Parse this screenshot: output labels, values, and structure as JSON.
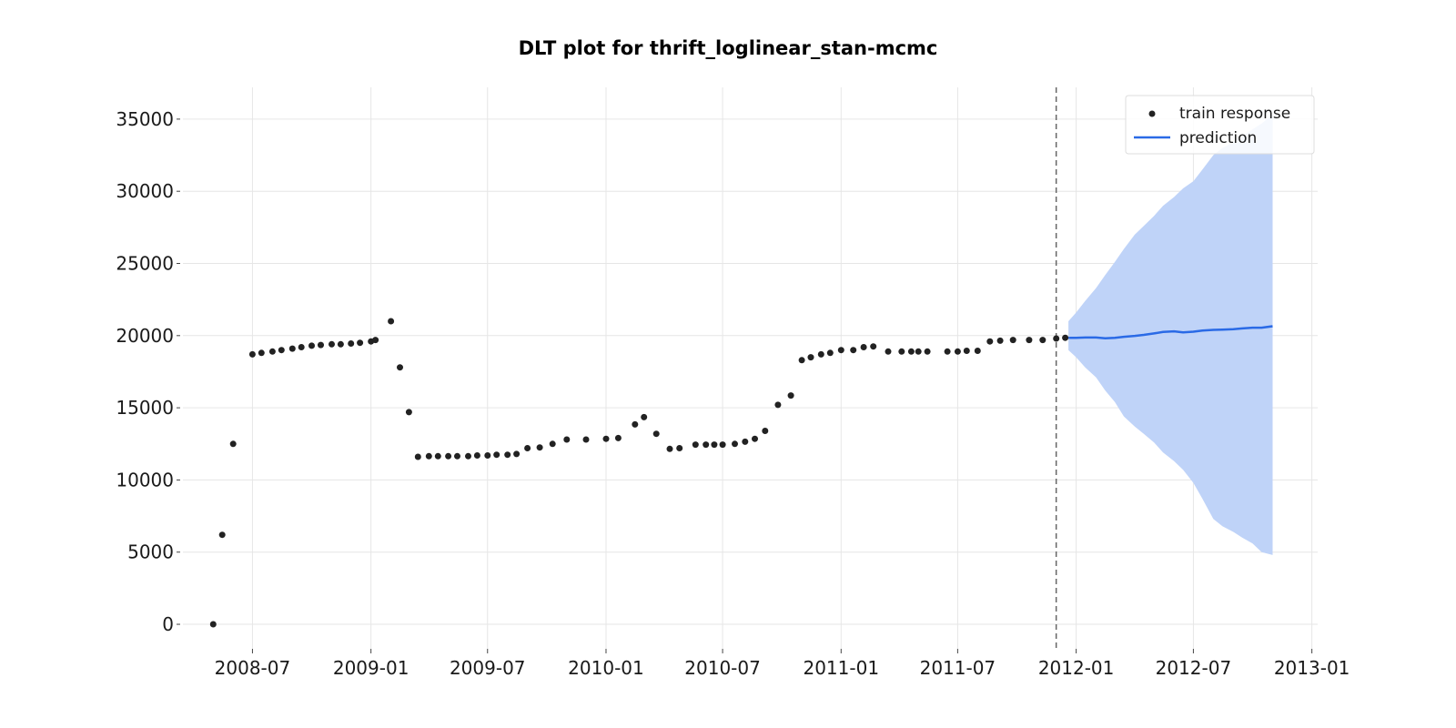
{
  "chart_data": {
    "type": "line",
    "title": "DLT plot for thrift_loglinear_stan-mcmc",
    "xlabel": "",
    "ylabel": "",
    "x_axis": "date",
    "xlim": [
      "2008-03-15",
      "2013-01-10"
    ],
    "ylim": [
      -1700,
      37200
    ],
    "yticks": [
      0,
      5000,
      10000,
      15000,
      20000,
      25000,
      30000,
      35000
    ],
    "xticks": [
      "2008-07",
      "2009-01",
      "2009-07",
      "2010-01",
      "2010-07",
      "2011-01",
      "2011-07",
      "2012-01",
      "2012-07",
      "2013-01"
    ],
    "grid": true,
    "legend": {
      "position": "top-right",
      "entries": [
        "train response",
        "prediction"
      ]
    },
    "colors": {
      "train_response": "#222222",
      "prediction": "#2a6ae6",
      "interval": "#bfd3f8",
      "split_line": "#666666"
    },
    "split_date": "2011-12-01",
    "series": [
      {
        "name": "train response",
        "kind": "scatter",
        "points": [
          [
            "2008-05-01",
            0
          ],
          [
            "2008-05-15",
            6200
          ],
          [
            "2008-06-01",
            12500
          ],
          [
            "2008-07-01",
            18700
          ],
          [
            "2008-07-15",
            18800
          ],
          [
            "2008-08-01",
            18900
          ],
          [
            "2008-08-15",
            19000
          ],
          [
            "2008-09-01",
            19100
          ],
          [
            "2008-09-15",
            19200
          ],
          [
            "2008-10-01",
            19300
          ],
          [
            "2008-10-15",
            19350
          ],
          [
            "2008-11-01",
            19400
          ],
          [
            "2008-11-15",
            19400
          ],
          [
            "2008-12-01",
            19450
          ],
          [
            "2008-12-15",
            19500
          ],
          [
            "2009-01-01",
            19600
          ],
          [
            "2009-01-08",
            19700
          ],
          [
            "2009-02-01",
            21000
          ],
          [
            "2009-02-15",
            17800
          ],
          [
            "2009-03-01",
            14700
          ],
          [
            "2009-03-15",
            11600
          ],
          [
            "2009-04-01",
            11650
          ],
          [
            "2009-04-15",
            11650
          ],
          [
            "2009-05-01",
            11650
          ],
          [
            "2009-05-15",
            11650
          ],
          [
            "2009-06-01",
            11650
          ],
          [
            "2009-06-15",
            11700
          ],
          [
            "2009-07-01",
            11700
          ],
          [
            "2009-07-15",
            11750
          ],
          [
            "2009-08-01",
            11750
          ],
          [
            "2009-08-15",
            11800
          ],
          [
            "2009-09-01",
            12200
          ],
          [
            "2009-09-20",
            12250
          ],
          [
            "2009-10-10",
            12500
          ],
          [
            "2009-11-01",
            12800
          ],
          [
            "2009-12-01",
            12800
          ],
          [
            "2010-01-01",
            12850
          ],
          [
            "2010-01-20",
            12900
          ],
          [
            "2010-02-15",
            13850
          ],
          [
            "2010-03-01",
            14350
          ],
          [
            "2010-03-20",
            13200
          ],
          [
            "2010-04-10",
            12150
          ],
          [
            "2010-04-25",
            12200
          ],
          [
            "2010-05-20",
            12450
          ],
          [
            "2010-06-05",
            12450
          ],
          [
            "2010-06-18",
            12450
          ],
          [
            "2010-07-01",
            12450
          ],
          [
            "2010-07-20",
            12500
          ],
          [
            "2010-08-05",
            12650
          ],
          [
            "2010-08-20",
            12850
          ],
          [
            "2010-09-05",
            13400
          ],
          [
            "2010-09-25",
            15200
          ],
          [
            "2010-10-15",
            15850
          ],
          [
            "2010-11-01",
            18300
          ],
          [
            "2010-11-15",
            18500
          ],
          [
            "2010-12-01",
            18700
          ],
          [
            "2010-12-15",
            18800
          ],
          [
            "2011-01-01",
            19000
          ],
          [
            "2011-01-20",
            19000
          ],
          [
            "2011-02-05",
            19200
          ],
          [
            "2011-02-20",
            19250
          ],
          [
            "2011-03-15",
            18900
          ],
          [
            "2011-04-05",
            18900
          ],
          [
            "2011-04-20",
            18900
          ],
          [
            "2011-05-01",
            18900
          ],
          [
            "2011-05-15",
            18900
          ],
          [
            "2011-06-15",
            18900
          ],
          [
            "2011-07-01",
            18900
          ],
          [
            "2011-07-15",
            18950
          ],
          [
            "2011-08-01",
            18950
          ],
          [
            "2011-08-20",
            19600
          ],
          [
            "2011-09-05",
            19650
          ],
          [
            "2011-09-25",
            19700
          ],
          [
            "2011-10-20",
            19700
          ],
          [
            "2011-11-10",
            19700
          ],
          [
            "2011-12-01",
            19800
          ],
          [
            "2011-12-15",
            19850
          ]
        ]
      },
      {
        "name": "prediction",
        "kind": "line",
        "points": [
          [
            "2011-12-20",
            19850
          ],
          [
            "2012-01-01",
            19850
          ],
          [
            "2012-01-15",
            19870
          ],
          [
            "2012-02-01",
            19870
          ],
          [
            "2012-02-15",
            19820
          ],
          [
            "2012-03-01",
            19850
          ],
          [
            "2012-03-15",
            19920
          ],
          [
            "2012-04-01",
            19980
          ],
          [
            "2012-04-15",
            20050
          ],
          [
            "2012-05-01",
            20150
          ],
          [
            "2012-05-15",
            20250
          ],
          [
            "2012-06-01",
            20300
          ],
          [
            "2012-06-15",
            20230
          ],
          [
            "2012-07-01",
            20270
          ],
          [
            "2012-07-15",
            20350
          ],
          [
            "2012-08-01",
            20400
          ],
          [
            "2012-08-15",
            20420
          ],
          [
            "2012-09-01",
            20450
          ],
          [
            "2012-09-15",
            20500
          ],
          [
            "2012-10-01",
            20550
          ],
          [
            "2012-10-15",
            20550
          ],
          [
            "2012-11-01",
            20650
          ]
        ]
      }
    ],
    "prediction_interval": {
      "points": [
        [
          "2011-12-20",
          19000,
          21000
        ],
        [
          "2012-01-01",
          18500,
          21600
        ],
        [
          "2012-01-15",
          17800,
          22400
        ],
        [
          "2012-02-01",
          17100,
          23300
        ],
        [
          "2012-02-15",
          16200,
          24200
        ],
        [
          "2012-03-01",
          15400,
          25100
        ],
        [
          "2012-03-15",
          14400,
          26000
        ],
        [
          "2012-04-01",
          13700,
          27000
        ],
        [
          "2012-04-15",
          13200,
          27600
        ],
        [
          "2012-05-01",
          12600,
          28300
        ],
        [
          "2012-05-15",
          11900,
          29000
        ],
        [
          "2012-06-01",
          11300,
          29600
        ],
        [
          "2012-06-15",
          10700,
          30200
        ],
        [
          "2012-07-01",
          9800,
          30700
        ],
        [
          "2012-07-15",
          8700,
          31500
        ],
        [
          "2012-08-01",
          7300,
          32500
        ],
        [
          "2012-08-15",
          6800,
          33000
        ],
        [
          "2012-09-01",
          6400,
          33400
        ],
        [
          "2012-09-15",
          6000,
          33800
        ],
        [
          "2012-10-01",
          5600,
          34300
        ],
        [
          "2012-10-15",
          5000,
          34700
        ],
        [
          "2012-11-01",
          4800,
          35300
        ]
      ]
    }
  }
}
